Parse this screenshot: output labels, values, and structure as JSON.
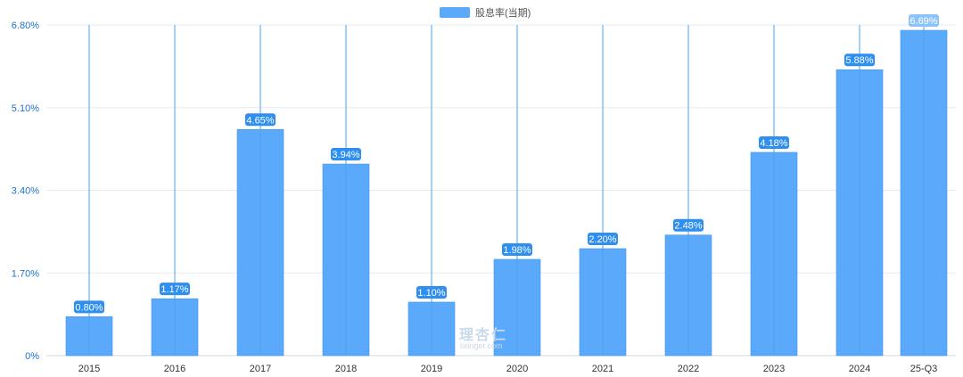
{
  "chart_data": {
    "type": "bar",
    "categories": [
      "2015",
      "2016",
      "2017",
      "2018",
      "2019",
      "2020",
      "2021",
      "2022",
      "2023",
      "2024",
      "25-Q3"
    ],
    "series": [
      {
        "name": "股息率(当期)",
        "values": [
          0.8,
          1.17,
          4.65,
          3.94,
          1.1,
          1.98,
          2.2,
          2.48,
          4.18,
          5.88,
          6.69
        ],
        "data_labels": [
          "0.80%",
          "1.17%",
          "4.65%",
          "3.94%",
          "1.10%",
          "1.98%",
          "2.20%",
          "2.48%",
          "4.18%",
          "5.88%",
          "6.69%"
        ]
      }
    ],
    "title": "",
    "xlabel": "",
    "ylabel": "",
    "ylim": [
      0,
      6.8
    ],
    "yticks": [
      0,
      1.7,
      3.4,
      5.1,
      6.8
    ],
    "ytick_labels": [
      "0%",
      "1.70%",
      "3.40%",
      "5.10%",
      "6.80%"
    ],
    "grid": true,
    "legend_position": "top-center",
    "colors": {
      "bar": "#5aa9fb",
      "bar_edge": "#3e95f0",
      "label_bg": "#2f8ff0",
      "axis_text": "#1a73c9",
      "vline": "#4aa3ee"
    }
  },
  "watermark": {
    "text_cn": "理杏仁",
    "text_en": "lixinger.com"
  }
}
